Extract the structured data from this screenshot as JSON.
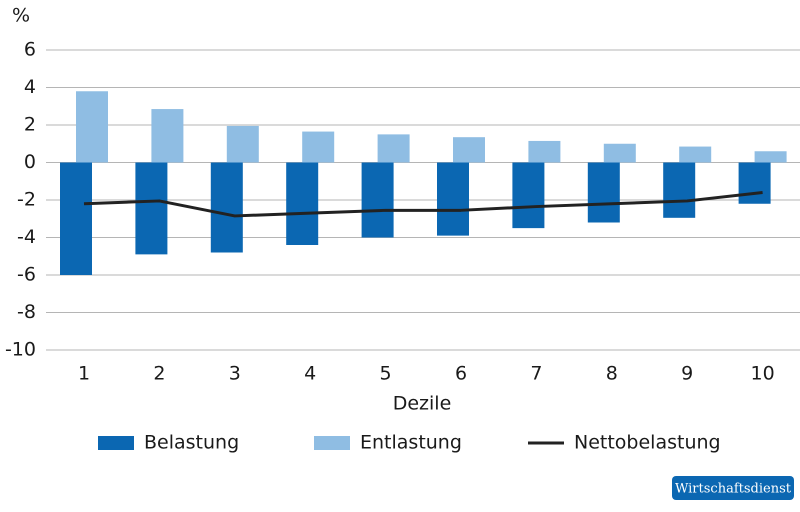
{
  "chart_data": {
    "type": "bar_line",
    "y_unit": "%",
    "x_label": "Dezile",
    "badge": "Wirtschaftsdienst",
    "categories": [
      "1",
      "2",
      "3",
      "4",
      "5",
      "6",
      "7",
      "8",
      "9",
      "10"
    ],
    "series": [
      {
        "name": "Belastung",
        "kind": "bar",
        "color": "#0b67b2",
        "values": [
          -6.0,
          -4.9,
          -4.8,
          -4.4,
          -4.0,
          -3.9,
          -3.5,
          -3.2,
          -2.95,
          -2.2
        ]
      },
      {
        "name": "Entlastung",
        "kind": "bar",
        "color": "#8fbde3",
        "values": [
          3.8,
          2.85,
          1.95,
          1.65,
          1.5,
          1.35,
          1.15,
          1.0,
          0.85,
          0.6
        ]
      },
      {
        "name": "Nettobelastung",
        "kind": "line",
        "color": "#222222",
        "values": [
          -2.2,
          -2.05,
          -2.85,
          -2.7,
          -2.55,
          -2.55,
          -2.35,
          -2.2,
          -2.05,
          -1.6
        ]
      }
    ],
    "ylim": [
      -10,
      6
    ],
    "yticks": [
      -10,
      -8,
      -6,
      -4,
      -2,
      0,
      2,
      4,
      6
    ],
    "grid": true
  }
}
